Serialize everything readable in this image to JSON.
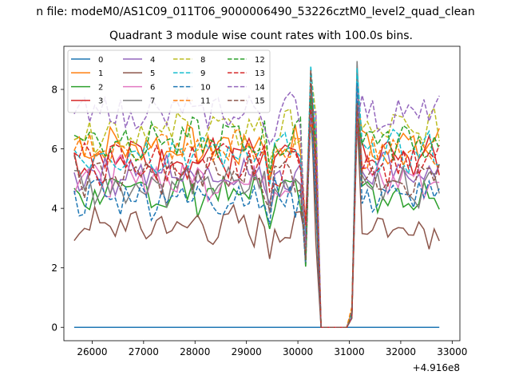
{
  "chart_data": {
    "type": "line",
    "suptitle": "n file: modeM0/AS1C09_011T06_9000006490_53226cztM0_level2_quad_clean",
    "title": "Quadrant 3 module wise count rates with 100.0s bins.",
    "xlabel": "",
    "ylabel": "",
    "x_offset_label": "+4.916e8",
    "xlim": [
      25450,
      33150
    ],
    "ylim": [
      -0.45,
      9.45
    ],
    "xticks": [
      "26000",
      "27000",
      "28000",
      "29000",
      "30000",
      "31000",
      "32000",
      "33000"
    ],
    "yticks": [
      "0",
      "2",
      "4",
      "6",
      "8"
    ],
    "grid": false,
    "legend_position": "top-left",
    "legend_columns": 4,
    "x": [
      25650,
      25750,
      25850,
      25950,
      26050,
      26150,
      26250,
      26350,
      26450,
      26550,
      26650,
      26750,
      26850,
      26950,
      27050,
      27150,
      27250,
      27350,
      27450,
      27550,
      27650,
      27750,
      27850,
      27950,
      28050,
      28150,
      28250,
      28350,
      28450,
      28550,
      28650,
      28750,
      28850,
      28950,
      29050,
      29150,
      29250,
      29350,
      29450,
      29550,
      29650,
      29750,
      29850,
      29950,
      30050,
      30150,
      30250,
      30350,
      30450,
      30550,
      30650,
      30750,
      30850,
      30950,
      31050,
      31150,
      31250,
      31350,
      31450,
      31550,
      31650,
      31750,
      31850,
      31950,
      32050,
      32150,
      32250,
      32350,
      32450,
      32550,
      32650,
      32750
    ],
    "envelope": {
      "dip_x": [
        28000,
        29450,
        30150
      ],
      "peak_x": [
        30250,
        31150
      ],
      "gap_x": [
        30450,
        30950
      ]
    },
    "series": [
      {
        "name": "0",
        "color": "#1f77b4",
        "dashed": false,
        "level": 0.0
      },
      {
        "name": "1",
        "color": "#ff7f0e",
        "dashed": false,
        "level": 6.1
      },
      {
        "name": "2",
        "color": "#2ca02c",
        "dashed": false,
        "level": 4.5
      },
      {
        "name": "3",
        "color": "#d62728",
        "dashed": false,
        "level": 5.7
      },
      {
        "name": "4",
        "color": "#9467bd",
        "dashed": false,
        "level": 5.2
      },
      {
        "name": "5",
        "color": "#8c564b",
        "dashed": false,
        "level": 3.4
      },
      {
        "name": "6",
        "color": "#e377c2",
        "dashed": false,
        "level": 5.0
      },
      {
        "name": "7",
        "color": "#7f7f7f",
        "dashed": false,
        "level": 4.8
      },
      {
        "name": "8",
        "color": "#bcbd22",
        "dashed": true,
        "level": 6.6
      },
      {
        "name": "9",
        "color": "#17becf",
        "dashed": true,
        "level": 5.9
      },
      {
        "name": "10",
        "color": "#1f77b4",
        "dashed": true,
        "level": 4.4
      },
      {
        "name": "11",
        "color": "#ff7f0e",
        "dashed": true,
        "level": 6.0
      },
      {
        "name": "12",
        "color": "#2ca02c",
        "dashed": true,
        "level": 6.3
      },
      {
        "name": "13",
        "color": "#d62728",
        "dashed": true,
        "level": 5.5
      },
      {
        "name": "14",
        "color": "#9467bd",
        "dashed": true,
        "level": 7.2
      },
      {
        "name": "15",
        "color": "#8c564b",
        "dashed": true,
        "level": 5.1
      }
    ]
  }
}
